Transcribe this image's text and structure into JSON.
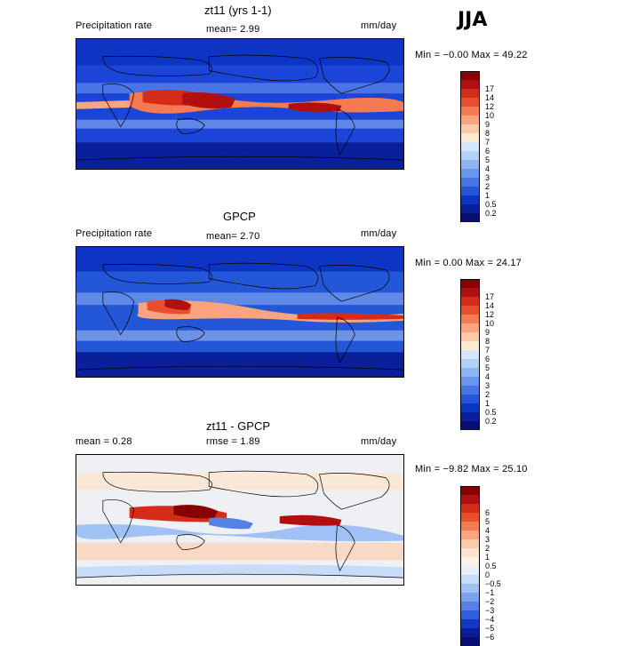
{
  "season": "JJA",
  "panels": [
    {
      "title": "zt11 (yrs 1-1)",
      "left_label": "Precipitation rate",
      "center_label": "mean=   2.99",
      "units": "mm/day",
      "minmax": "Min =  −0.00 Max =  49.22",
      "colors": [
        "#880000",
        "#b01010",
        "#d42c18",
        "#e84f2e",
        "#f47a52",
        "#f9a47d",
        "#fbcaa8",
        "#fdebd3",
        "#d6e6fa",
        "#b5d0f6",
        "#8fb4f2",
        "#6a95ec",
        "#4576e4",
        "#2456d8",
        "#0d35c4",
        "#0a1f9a",
        "#071070"
      ],
      "ticks": [
        "17",
        "14",
        "12",
        "10",
        "9",
        "8",
        "7",
        "6",
        "5",
        "4",
        "3",
        "2",
        "1",
        "0.5",
        "0.2"
      ]
    },
    {
      "title": "GPCP",
      "left_label": "Precipitation rate",
      "center_label": "mean=   2.70",
      "units": "mm/day",
      "minmax": "Min =   0.00 Max =  24.17",
      "colors": [
        "#880000",
        "#b01010",
        "#d42c18",
        "#e84f2e",
        "#f47a52",
        "#f9a47d",
        "#fbcaa8",
        "#fdebd3",
        "#d6e6fa",
        "#b5d0f6",
        "#8fb4f2",
        "#6a95ec",
        "#4576e4",
        "#2456d8",
        "#0d35c4",
        "#0a1f9a",
        "#071070"
      ],
      "ticks": [
        "17",
        "14",
        "12",
        "10",
        "9",
        "8",
        "7",
        "6",
        "5",
        "4",
        "3",
        "2",
        "1",
        "0.5",
        "0.2"
      ]
    },
    {
      "title": "zt11 - GPCP",
      "left_label": "mean =    0.28",
      "center_label": "rmse =    1.89",
      "units": "mm/day",
      "minmax": "Min =  −9.82 Max =  25.10",
      "colors": [
        "#880000",
        "#b01010",
        "#d42c18",
        "#e84f2e",
        "#f47a52",
        "#f9a47d",
        "#fbcaa8",
        "#fde2cc",
        "#fdf2e6",
        "#e6effb",
        "#c6dcf8",
        "#9fc1f3",
        "#7aa2ee",
        "#5580e6",
        "#2f5ddb",
        "#1538c4",
        "#0a1e9c",
        "#060f6e"
      ],
      "ticks": [
        "6",
        "5",
        "4",
        "3",
        "2",
        "1",
        "0.5",
        "0",
        "−0.5",
        "−1",
        "−2",
        "−3",
        "−4",
        "−5",
        "−6"
      ]
    }
  ]
}
